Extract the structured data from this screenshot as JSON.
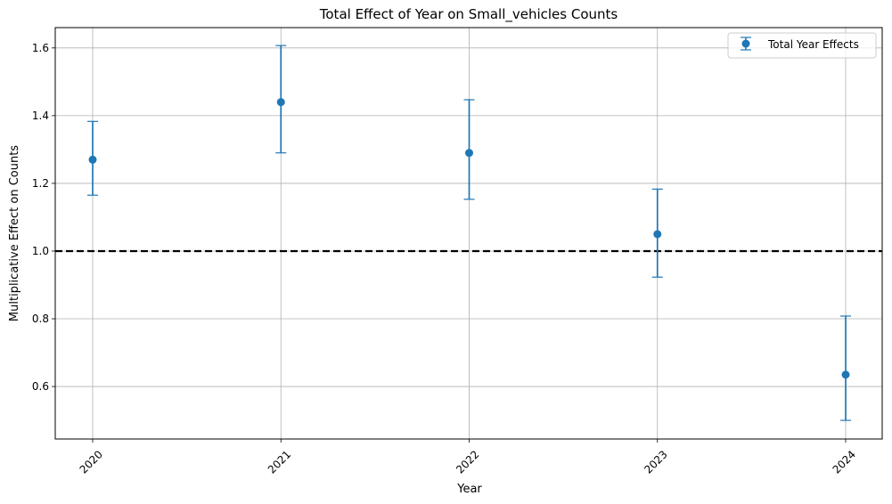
{
  "chart_data": {
    "type": "scatter",
    "title": "Total Effect of Year on Small_vehicles Counts",
    "xlabel": "Year",
    "ylabel": "Multiplicative Effect on Counts",
    "x": [
      "2020",
      "2021",
      "2022",
      "2023",
      "2024"
    ],
    "series": [
      {
        "name": "Total Year Effects",
        "color": "#1f77b4",
        "values": [
          1.27,
          1.44,
          1.29,
          1.05,
          0.635
        ],
        "lower": [
          1.165,
          1.29,
          1.153,
          0.923,
          0.5
        ],
        "upper": [
          1.383,
          1.607,
          1.447,
          1.183,
          0.808
        ]
      }
    ],
    "reference_line": {
      "y": 1.0,
      "style": "dashed",
      "color": "#000000"
    },
    "ylim": [
      0.445,
      1.66
    ],
    "yticks": [
      "0.6",
      "0.8",
      "1.0",
      "1.2",
      "1.4",
      "1.6"
    ],
    "xtick_rotation": 45,
    "grid": true,
    "legend_position": "top-right"
  }
}
